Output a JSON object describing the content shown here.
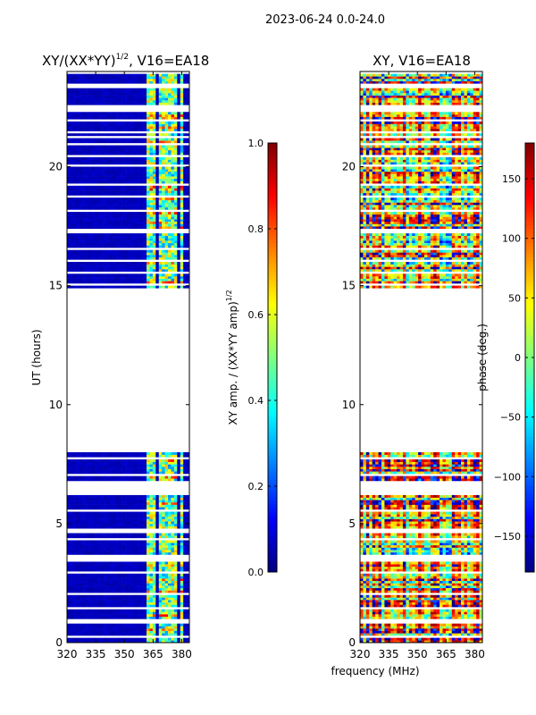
{
  "figure_title": "2023-06-24 0.0-24.0",
  "xlabel": "frequency (MHz)",
  "chart_data": [
    {
      "type": "heatmap",
      "title": "XY/(XX*YY)^1/2, V16=EA18",
      "title_main": "XY/(XX*YY)",
      "title_sup": "1/2",
      "title_tail": ", V16=EA18",
      "xlabel": "frequency (MHz)",
      "ylabel": "UT (hours)",
      "xlim": [
        320,
        384
      ],
      "ylim": [
        0,
        24
      ],
      "xticks": [
        "320",
        "335",
        "350",
        "365",
        "380"
      ],
      "xtick_values": [
        320,
        335,
        350,
        365,
        380
      ],
      "yticks": [
        "0",
        "5",
        "10",
        "15",
        "20"
      ],
      "ytick_values": [
        0,
        5,
        10,
        15,
        20
      ],
      "colormap": "jet",
      "colorbar": {
        "label": "XY amp. / (XX*YY amp)",
        "label_sup": "1/2",
        "range": [
          0.0,
          1.0
        ],
        "ticks": [
          "0.0",
          "0.2",
          "0.4",
          "0.6",
          "0.8",
          "1.0"
        ],
        "tick_values": [
          0,
          0.2,
          0.4,
          0.6,
          0.8,
          1.0
        ]
      },
      "data_intervals_ut": [
        [
          0.05,
          8.0
        ],
        [
          14.9,
          24.0
        ]
      ],
      "gaps_ut": [
        [
          0.85,
          1.0
        ],
        [
          3.45,
          3.6
        ],
        [
          4.6,
          4.72
        ],
        [
          6.25,
          6.75
        ],
        [
          8.0,
          14.9
        ],
        [
          16.0,
          16.12
        ],
        [
          17.15,
          17.3
        ],
        [
          21.2,
          21.35
        ],
        [
          22.35,
          22.6
        ],
        [
          23.35,
          23.5
        ]
      ],
      "baseline_value": 0.05,
      "active_bands_mhz": [
        [
          362,
          367
        ],
        [
          368,
          372.5
        ],
        [
          373.5,
          377.5
        ],
        [
          378.5,
          381
        ]
      ],
      "band_value_range": [
        0.2,
        0.85
      ]
    },
    {
      "type": "heatmap",
      "title": "XY, V16=EA18",
      "xlabel": "frequency (MHz)",
      "ylabel": "",
      "xlim": [
        320,
        384
      ],
      "ylim": [
        0,
        24
      ],
      "xticks": [
        "320",
        "335",
        "350",
        "365",
        "380"
      ],
      "xtick_values": [
        320,
        335,
        350,
        365,
        380
      ],
      "yticks": [
        "0",
        "5",
        "10",
        "15",
        "20"
      ],
      "ytick_values": [
        0,
        5,
        10,
        15,
        20
      ],
      "colormap": "jet",
      "colorbar": {
        "label": "phase (deg.)",
        "range": [
          -180,
          180
        ],
        "ticks": [
          "−150",
          "−100",
          "−50",
          "0",
          "50",
          "100",
          "150"
        ],
        "tick_values": [
          -150,
          -100,
          -50,
          0,
          50,
          100,
          150
        ]
      },
      "data_intervals_ut": [
        [
          0.05,
          8.0
        ],
        [
          14.9,
          24.0
        ]
      ],
      "gaps_ut": [
        [
          0.85,
          1.0
        ],
        [
          3.45,
          3.6
        ],
        [
          4.6,
          4.72
        ],
        [
          6.25,
          6.75
        ],
        [
          8.0,
          14.9
        ],
        [
          16.0,
          16.12
        ],
        [
          17.15,
          17.3
        ],
        [
          21.2,
          21.35
        ],
        [
          22.35,
          22.6
        ],
        [
          23.35,
          23.5
        ]
      ],
      "value_range": [
        -180,
        180
      ]
    }
  ]
}
